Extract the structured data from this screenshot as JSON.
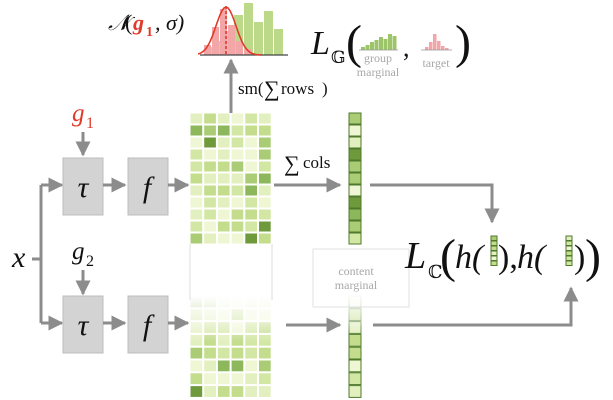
{
  "colors": {
    "accent_red": "#e03a2a",
    "block_fill": "#d3d3d3",
    "block_stroke": "#b8b8b8",
    "arrow": "#8c8c8c",
    "green_light": "#e9f3c8",
    "green_mid": "#bcd98a",
    "green_dark": "#6f9a3c",
    "pink": "#f2a6a8",
    "muted_text": "#a8a8a8",
    "black": "#111111"
  },
  "diagram": {
    "input_x": "x",
    "g1": {
      "sym": "g",
      "sub": "1"
    },
    "g2": {
      "sym": "g",
      "sub": "2"
    },
    "tau": "τ",
    "f": "f",
    "sm_label": {
      "pre": "sm(",
      "sigma": "∑",
      "rows": "rows",
      "post": ")"
    },
    "cols_label": {
      "sigma": "∑",
      "text": "cols"
    },
    "normal": {
      "N": "𝒩",
      "lp": "(",
      "g": "g",
      "sub": "1",
      "comma": ", σ)"
    },
    "group_loss": {
      "L": "L",
      "sub": "𝔾",
      "lp": "(",
      "comma": ",",
      "rp": ")"
    },
    "group_marginal": [
      "group",
      "marginal"
    ],
    "target": "target",
    "content_marginal": [
      "content",
      "marginal"
    ],
    "content_loss": {
      "L": "L",
      "sub": "ℂ",
      "lp": "(",
      "h1": "h(",
      "mid": "),",
      "h2": "h(",
      "end": ")",
      "rp": ")"
    }
  }
}
